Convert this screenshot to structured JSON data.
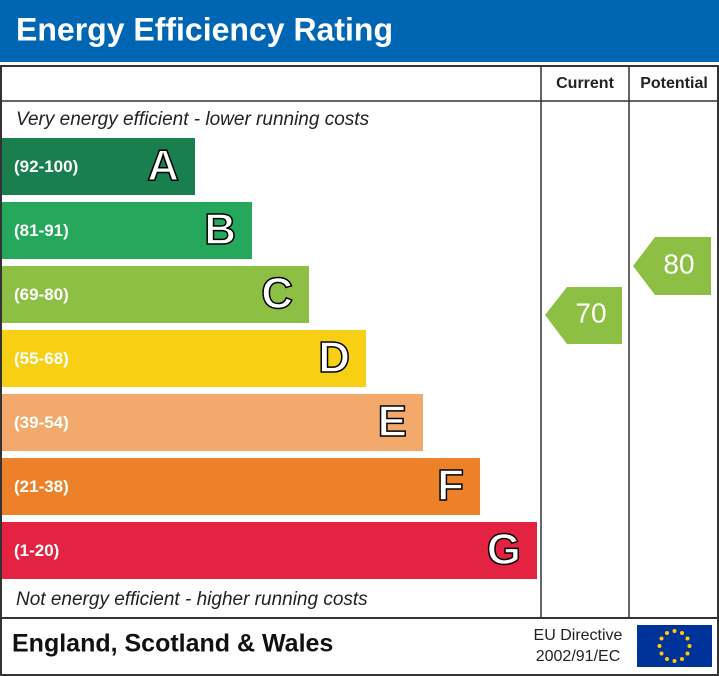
{
  "title": "Energy Efficiency Rating",
  "columns": [
    "Current",
    "Potential"
  ],
  "top_note": "Very energy efficient - lower running costs",
  "bottom_note": "Not energy efficient - higher running costs",
  "bands": [
    {
      "range": "(92-100)",
      "letter": "A",
      "color": "#1a7f4f"
    },
    {
      "range": "(81-91)",
      "letter": "B",
      "color": "#25a85b"
    },
    {
      "range": "(69-80)",
      "letter": "C",
      "color": "#8cbf44"
    },
    {
      "range": "(55-68)",
      "letter": "D",
      "color": "#f7d016"
    },
    {
      "range": "(39-54)",
      "letter": "E",
      "color": "#f2a96b"
    },
    {
      "range": "(21-38)",
      "letter": "F",
      "color": "#ec8129"
    },
    {
      "range": "(1-20)",
      "letter": "G",
      "color": "#e32341"
    }
  ],
  "current": {
    "value": 70,
    "color": "#8cbf44"
  },
  "potential": {
    "value": 80,
    "color": "#8cbf44"
  },
  "footer": {
    "region": "England, Scotland & Wales",
    "directive_line1": "EU Directive",
    "directive_line2": "2002/91/EC"
  }
}
